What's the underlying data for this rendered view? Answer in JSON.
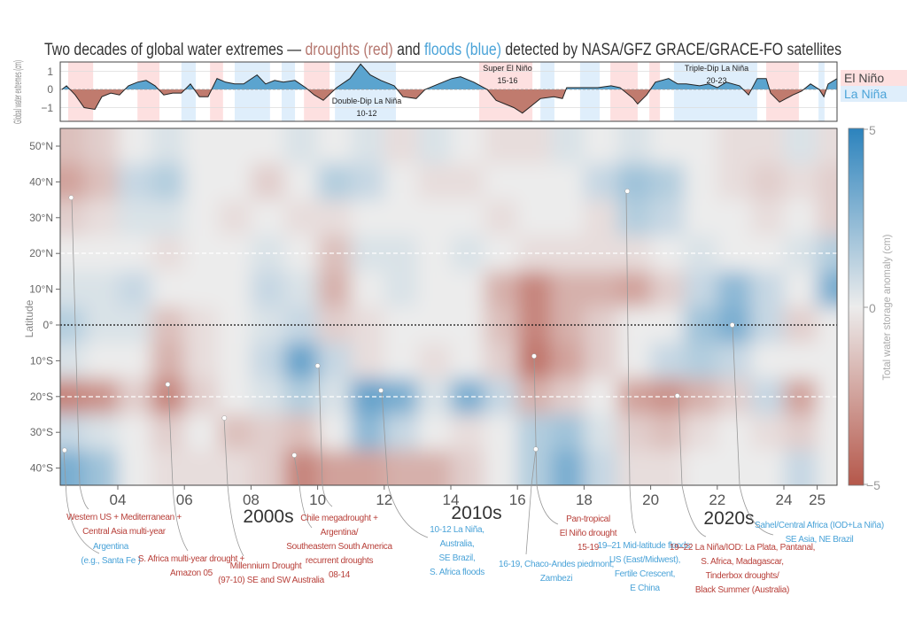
{
  "title": {
    "part1": "Two decades of global water extremes — ",
    "droughts": "droughts (red)",
    "and": " and ",
    "floods": "floods (blue)",
    "part2": " detected  by NASA/GFZ GRACE/GRACE-FO satellites"
  },
  "colors": {
    "drought": "#b5574a",
    "neutral": "#ececec",
    "flood": "#2c83bd",
    "el_nino_band": "#fde0e0",
    "la_nina_band": "#dfeefb"
  },
  "chart_data": [
    {
      "type": "area",
      "ylabel": "Global water extremes (cm)",
      "ylim": [
        -1.4,
        1.5
      ],
      "yticks": [
        "1",
        "0",
        "−1"
      ],
      "ytick_values": [
        1,
        0,
        -1
      ],
      "legend": {
        "el_nino": "El Niño",
        "la_nina": "La Niña",
        "placement": "right"
      },
      "el_nino_periods": [
        [
          2002.51,
          2003.26
        ],
        [
          2004.59,
          2005.25
        ],
        [
          2006.77,
          2007.16
        ],
        [
          2009.59,
          2010.36
        ],
        [
          2014.85,
          2016.45
        ],
        [
          2018.79,
          2019.61
        ],
        [
          2019.96,
          2020.28
        ],
        [
          2023.47,
          2024.45
        ]
      ],
      "la_nina_periods": [
        [
          2005.91,
          2006.34
        ],
        [
          2007.51,
          2008.57
        ],
        [
          2008.92,
          2009.32
        ],
        [
          2010.52,
          2012.35
        ],
        [
          2016.69,
          2017.11
        ],
        [
          2017.88,
          2018.47
        ],
        [
          2020.7,
          2023.2
        ],
        [
          2025.04,
          2025.22
        ]
      ],
      "annotations": [
        {
          "line1": "Double-Dip La Niña",
          "line2": "10-12"
        },
        {
          "line1": "Super El Niño",
          "line2": "15-16"
        },
        {
          "line1": "Triple-Dip La Niña",
          "line2": "20-23"
        }
      ],
      "x": [
        2002.32,
        2002.46,
        2002.72,
        2002.99,
        2003.31,
        2003.52,
        2003.79,
        2004.05,
        2004.32,
        2004.59,
        2004.85,
        2005.12,
        2005.38,
        2005.65,
        2005.91,
        2006.18,
        2006.45,
        2006.71,
        2006.98,
        2007.24,
        2007.51,
        2007.78,
        2008.18,
        2008.44,
        2008.71,
        2008.97,
        2009.32,
        2009.64,
        2009.9,
        2010.17,
        2010.57,
        2010.97,
        2011.29,
        2011.58,
        2011.9,
        2012.3,
        2012.56,
        2012.96,
        2013.23,
        2013.63,
        2014.03,
        2014.29,
        2014.69,
        2015.09,
        2015.36,
        2015.89,
        2016.15,
        2016.42,
        2016.69,
        2017.09,
        2017.35,
        2017.48,
        2017.88,
        2018.41,
        2018.81,
        2019.08,
        2019.48,
        2019.61,
        2019.88,
        2020.14,
        2020.54,
        2020.81,
        2021.07,
        2021.47,
        2021.74,
        2022.0,
        2022.27,
        2022.67,
        2022.94,
        2023.2,
        2023.47,
        2023.6,
        2023.87,
        2024.27,
        2024.53,
        2024.8,
        2025.06,
        2025.2,
        2025.33,
        2025.6
      ],
      "y": [
        0,
        0.2,
        -0.3,
        -1.0,
        -1.1,
        -0.4,
        -0.2,
        -0.3,
        0.2,
        0.4,
        0.5,
        0.2,
        -0.3,
        -0.2,
        -0.2,
        0.3,
        -0.4,
        -0.4,
        0.6,
        0.4,
        0.3,
        0.3,
        0.8,
        0.3,
        0.5,
        0.4,
        0.5,
        0.1,
        -0.3,
        -0.6,
        0.1,
        0.6,
        1.4,
        0.8,
        0.5,
        0.2,
        -0.4,
        -0.5,
        0.0,
        0.3,
        0.6,
        0.7,
        0.4,
        0.0,
        -0.6,
        -1.0,
        -1.3,
        -0.9,
        -0.5,
        -0.4,
        -0.5,
        0.1,
        0.1,
        0.1,
        0.2,
        0.1,
        -0.5,
        -0.8,
        -0.3,
        0.4,
        0.6,
        0.3,
        0.3,
        0.2,
        0.3,
        0.1,
        0.4,
        0.2,
        -0.3,
        0.6,
        0.6,
        -0.2,
        -0.7,
        -0.3,
        -0.1,
        0.3,
        0.0,
        -0.4,
        0.3,
        0.6
      ]
    },
    {
      "type": "heatmap",
      "xlabel": "",
      "ylabel": "Latitude",
      "colorbar_label": "Total water storage anomaly (cm)",
      "colorbar_ticks": [
        "5",
        "0",
        "−5"
      ],
      "clim": [
        -5,
        5
      ],
      "xlim": [
        2002.27,
        2025.6
      ],
      "ylim": [
        -45,
        55
      ],
      "xticks": [
        {
          "value": 2004,
          "label": "04"
        },
        {
          "value": 2006,
          "label": "06"
        },
        {
          "value": 2008,
          "label": "08"
        },
        {
          "value": 2010,
          "label": "10"
        },
        {
          "value": 2012,
          "label": "12"
        },
        {
          "value": 2014,
          "label": "14"
        },
        {
          "value": 2016,
          "label": "16"
        },
        {
          "value": 2018,
          "label": "18"
        },
        {
          "value": 2020,
          "label": "20"
        },
        {
          "value": 2022,
          "label": "22"
        },
        {
          "value": 2024,
          "label": "24"
        },
        {
          "value": 2025,
          "label": "25"
        }
      ],
      "yticks": [
        {
          "value": 50,
          "label": "50°N"
        },
        {
          "value": 40,
          "label": "40°N"
        },
        {
          "value": 30,
          "label": "30°N"
        },
        {
          "value": 20,
          "label": "20°N"
        },
        {
          "value": 10,
          "label": "10°N"
        },
        {
          "value": 0,
          "label": "0°"
        },
        {
          "value": -10,
          "label": "10°S"
        },
        {
          "value": -20,
          "label": "20°S"
        },
        {
          "value": -30,
          "label": "30°S"
        },
        {
          "value": -40,
          "label": "40°S"
        }
      ],
      "reference_lines": {
        "dashed_white": [
          20,
          -20
        ],
        "dotted_black": [
          0
        ]
      },
      "decades": [
        {
          "label": "2000s"
        },
        {
          "label": "2010s"
        },
        {
          "label": "2020s"
        }
      ],
      "years": [
        2002,
        2003,
        2004,
        2005,
        2006,
        2007,
        2008,
        2009,
        2010,
        2011,
        2012,
        2013,
        2014,
        2015,
        2016,
        2017,
        2018,
        2019,
        2020,
        2021,
        2022,
        2023,
        2024,
        2025
      ],
      "latitudes": [
        50,
        40,
        30,
        20,
        10,
        0,
        -10,
        -20,
        -30,
        -40
      ],
      "values": [
        [
          -1.5,
          -1,
          0,
          0.5,
          0,
          0,
          0,
          0.5,
          0,
          0.5,
          -0.5,
          0.5,
          0,
          -0.5,
          -0.5,
          0.5,
          0,
          0.5,
          0,
          0,
          -0.5,
          -0.5,
          0.5,
          -0.5
        ],
        [
          -2.5,
          -1.5,
          1,
          1.5,
          0,
          0,
          -1,
          0,
          1.5,
          1,
          0,
          -0.5,
          -0.5,
          0,
          0,
          0,
          1,
          2,
          1.5,
          0,
          -0.5,
          -1,
          -0.5,
          -1
        ],
        [
          -1,
          -0.5,
          0.5,
          0.5,
          0,
          -0.5,
          0,
          -0.5,
          -0.5,
          0,
          0,
          0,
          0,
          -0.5,
          0,
          0,
          -0.5,
          1.5,
          1,
          0,
          0,
          -0.5,
          0,
          -1
        ],
        [
          0,
          0,
          0,
          -0.5,
          0,
          0,
          0.5,
          0,
          -1.5,
          0.5,
          0.5,
          0,
          0.5,
          0,
          -0.5,
          -0.5,
          -0.5,
          -0.5,
          0,
          0.5,
          0,
          0,
          0.5,
          1.5
        ],
        [
          0.5,
          0.5,
          1,
          0,
          0,
          0,
          1,
          0.5,
          -2,
          0,
          0.5,
          0,
          0,
          -2,
          -3.5,
          -2,
          -2,
          -2.5,
          -1,
          1,
          2.5,
          1,
          0,
          3
        ],
        [
          1.5,
          0.5,
          0.5,
          -1.5,
          -0.5,
          0,
          0.5,
          1,
          -1,
          -0.5,
          0,
          0,
          0,
          -1.5,
          -3.5,
          -2,
          -1,
          0,
          0,
          2,
          3,
          1,
          -1,
          0
        ],
        [
          0.5,
          0,
          0,
          -2,
          -0.5,
          0,
          1,
          3.5,
          1,
          -0.5,
          0,
          -0.5,
          0,
          -1,
          -4,
          -2.5,
          -1,
          0,
          1,
          1.5,
          1,
          0,
          0,
          0
        ],
        [
          -3.5,
          -3,
          -1,
          -3.5,
          -1,
          0,
          0.5,
          1.5,
          0.5,
          3.5,
          3,
          0.5,
          3,
          1,
          -2,
          -1,
          0,
          -2.5,
          -3,
          -2,
          -1,
          1,
          -2.5,
          0
        ],
        [
          1,
          0.5,
          0,
          -1,
          0,
          -1.5,
          -1,
          -1.5,
          0,
          2.5,
          1,
          0,
          -0.5,
          0,
          1.5,
          2,
          0.5,
          -1,
          -1.5,
          -0.5,
          0,
          -0.5,
          -1,
          0
        ],
        [
          3,
          2,
          0,
          -0.5,
          -0.5,
          -0.5,
          -1,
          -3.5,
          -2.5,
          -2.5,
          -2,
          -2,
          -1,
          0,
          1.5,
          3,
          1,
          -0.5,
          -0.5,
          0,
          0,
          0,
          1,
          0
        ]
      ],
      "event_markers": [
        {
          "year": 2002.6,
          "lat": 35.6
        },
        {
          "year": 2002.4,
          "lat": -35
        },
        {
          "year": 2005.5,
          "lat": -16.6
        },
        {
          "year": 2007.2,
          "lat": -26
        },
        {
          "year": 2009.3,
          "lat": -36.4
        },
        {
          "year": 2010.0,
          "lat": -11.4
        },
        {
          "year": 2011.9,
          "lat": -18.3
        },
        {
          "year": 2019.3,
          "lat": 37.4
        },
        {
          "year": 2016.5,
          "lat": -8.7
        },
        {
          "year": 2016.55,
          "lat": -34.7
        },
        {
          "year": 2020.8,
          "lat": -19.8
        },
        {
          "year": 2022.45,
          "lat": 0
        }
      ]
    }
  ],
  "callouts": [
    {
      "type": "drought",
      "lines": [
        "Western US + Mediterranean +",
        "Central Asia multi-year"
      ]
    },
    {
      "type": "flood",
      "lines": [
        "Argentina",
        "(e.g., Santa Fe )"
      ]
    },
    {
      "type": "drought",
      "lines": [
        "S. Africa multi-year drought +",
        "Amazon 05"
      ]
    },
    {
      "type": "drought",
      "lines": [
        "Millennium Drought",
        "(97-10)  SE and SW Australia"
      ]
    },
    {
      "type": "drought",
      "lines": [
        "Chile megadrought +",
        "Argentina/",
        "Southeastern South America",
        "recurrent droughts",
        "08-14"
      ]
    },
    {
      "type": "flood",
      "lines": [
        "10-12 La Niña,",
        "Australia,",
        "SE Brazil,",
        "S. Africa floods"
      ]
    },
    {
      "type": "drought",
      "lines": [
        "Pan-tropical",
        "El Niño drought",
        "15-19"
      ]
    },
    {
      "type": "flood",
      "lines": [
        "16-19, Chaco-Andes piedmont,",
        "Zambezi"
      ]
    },
    {
      "type": "flood",
      "lines": [
        "19–21 Mid-latitude floods:",
        "US (East/Midwest),",
        "Fertile Crescent,",
        "E China"
      ]
    },
    {
      "type": "drought",
      "lines": [
        "19–22 La Niña/IOD: La Plata, Pantanal,",
        "S. Africa, Madagascar,",
        "Tinderbox droughts/",
        "Black Summer (Australia)"
      ]
    },
    {
      "type": "flood",
      "lines": [
        "Sahel/Central Africa (IOD+La Niña)",
        "SE Asia, NE Brazil"
      ]
    }
  ]
}
